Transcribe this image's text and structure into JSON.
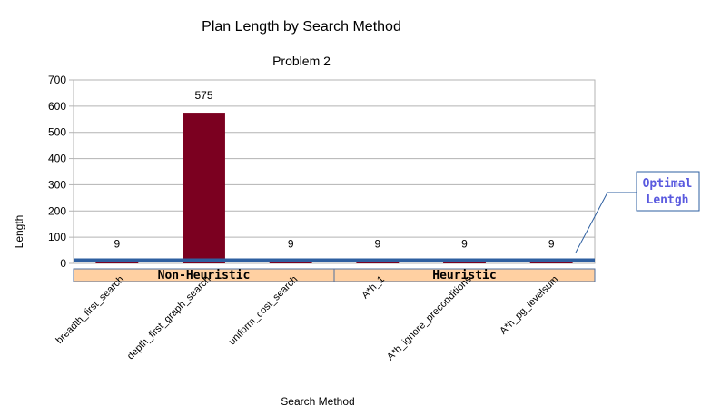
{
  "chart_data": {
    "type": "bar",
    "title": "Plan Length by Search Method",
    "subtitle": "Problem 2",
    "xlabel": "Search Method",
    "ylabel": "Length",
    "ylim": [
      0,
      700
    ],
    "yticks": [
      0,
      100,
      200,
      300,
      400,
      500,
      600,
      700
    ],
    "grid": true,
    "bar_color": "#7b0020",
    "categories": [
      "breadth_first_search",
      "depth_first_graph_search",
      "uniform_cost_search",
      "A*h_1",
      "A*h_ignore_preconditions",
      "A*h_pg_levelsum"
    ],
    "values": [
      9,
      575,
      9,
      9,
      9,
      9
    ],
    "data_labels": [
      "9",
      "575",
      "9",
      "9",
      "9",
      "9"
    ],
    "groups": [
      {
        "label": "Non-Heuristic",
        "start": 0,
        "end": 2
      },
      {
        "label": "Heuristic",
        "start": 3,
        "end": 5
      }
    ],
    "reference_line": {
      "value": 12,
      "color": "#2e5fa0"
    },
    "annotation": {
      "lines": [
        "Optimal",
        "Lentgh"
      ],
      "color": "#5a5adf"
    }
  }
}
